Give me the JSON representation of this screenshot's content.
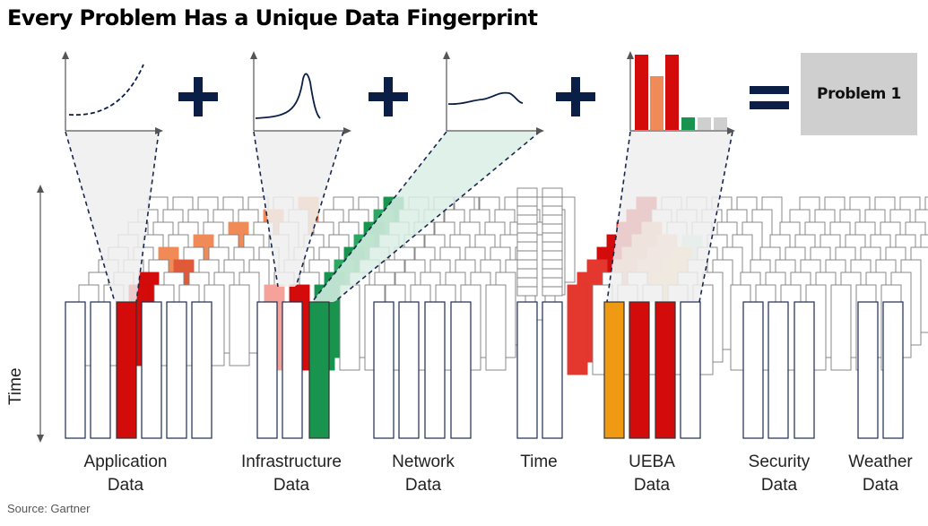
{
  "title": "Every Problem Has a Unique Data Fingerprint",
  "source": "Source: Gartner",
  "result": "Problem 1",
  "time_axis_label": "Time",
  "categories": [
    {
      "line1": "Application",
      "line2": "Data"
    },
    {
      "line1": "Infrastructure",
      "line2": "Data"
    },
    {
      "line1": "Network",
      "line2": "Data"
    },
    {
      "line1": "Time",
      "line2": ""
    },
    {
      "line1": "UEBA",
      "line2": "Data"
    },
    {
      "line1": "Security",
      "line2": "Data"
    },
    {
      "line1": "Weather",
      "line2": "Data"
    }
  ],
  "colors": {
    "red": "#d40b0b",
    "orange": "#f08b57",
    "green": "#18944f",
    "amber": "#ef9a12",
    "light_green": "#9fd9bd",
    "navy": "#0b1e45",
    "gray": "#cfcfcf"
  }
}
